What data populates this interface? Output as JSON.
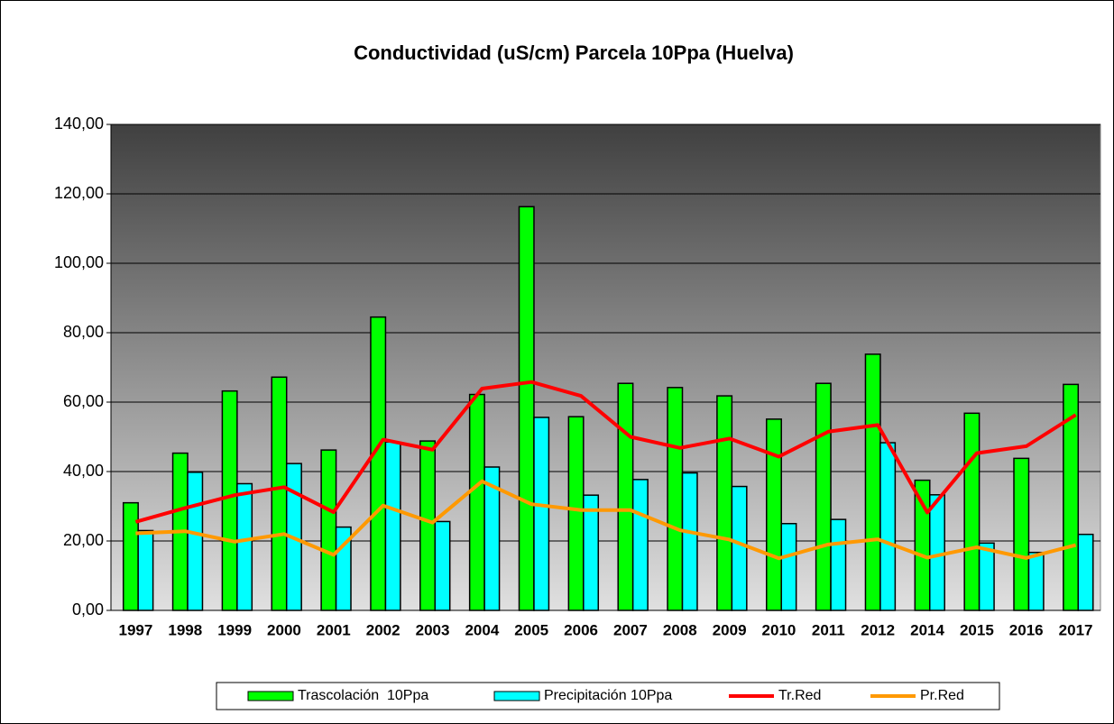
{
  "chart_data": {
    "type": "bar-line",
    "title": "Conductividad (uS/cm) Parcela 10Ppa (Huelva)",
    "categories": [
      "1997",
      "1998",
      "1999",
      "2000",
      "2001",
      "2002",
      "2003",
      "2004",
      "2005",
      "2006",
      "2007",
      "2008",
      "2009",
      "2010",
      "2011",
      "2012",
      "2014",
      "2015",
      "2016",
      "2017"
    ],
    "series": [
      {
        "name": "Trascolación  10Ppa",
        "kind": "bar",
        "color": "#00ff00",
        "values": [
          31,
          45.3,
          63.2,
          67.2,
          46.2,
          84.5,
          48.8,
          62.2,
          116.3,
          55.8,
          65.4,
          64.2,
          61.8,
          55.1,
          65.4,
          73.8,
          37.5,
          56.8,
          43.8,
          65.1
        ]
      },
      {
        "name": "Precipitación 10Ppa",
        "kind": "bar",
        "color": "#00ffff",
        "values": [
          23,
          39.8,
          36.5,
          42.3,
          24,
          48.5,
          25.6,
          41.3,
          55.6,
          33.2,
          37.7,
          39.6,
          35.7,
          25,
          26.2,
          48.3,
          33.3,
          19.4,
          16.7,
          21.9
        ]
      },
      {
        "name": "Tr.Red",
        "kind": "line",
        "color": "#ff0000",
        "values": [
          25.5,
          29.5,
          33.2,
          35.5,
          28.3,
          49.2,
          46.3,
          63.9,
          65.8,
          61.8,
          50,
          46.8,
          49.5,
          44.3,
          51.5,
          53.4,
          28.2,
          45.3,
          47.3,
          56.3
        ]
      },
      {
        "name": "Pr.Red",
        "kind": "line",
        "color": "#ff9900",
        "values": [
          22.2,
          22.8,
          19.8,
          22,
          16,
          30.2,
          25.3,
          37.2,
          30.6,
          28.9,
          28.9,
          23.1,
          20.4,
          15,
          19,
          20.5,
          15.2,
          18.2,
          15.1,
          18.8
        ]
      }
    ],
    "ylim": [
      0,
      140
    ],
    "yticks": [
      {
        "value": 0,
        "label": "0,00"
      },
      {
        "value": 20,
        "label": "20,00"
      },
      {
        "value": 40,
        "label": "40,00"
      },
      {
        "value": 60,
        "label": "60,00"
      },
      {
        "value": 80,
        "label": "80,00"
      },
      {
        "value": 100,
        "label": "100,00"
      },
      {
        "value": 120,
        "label": "120,00"
      },
      {
        "value": 140,
        "label": "140,00"
      }
    ],
    "grid": true,
    "legend": "bottom"
  }
}
